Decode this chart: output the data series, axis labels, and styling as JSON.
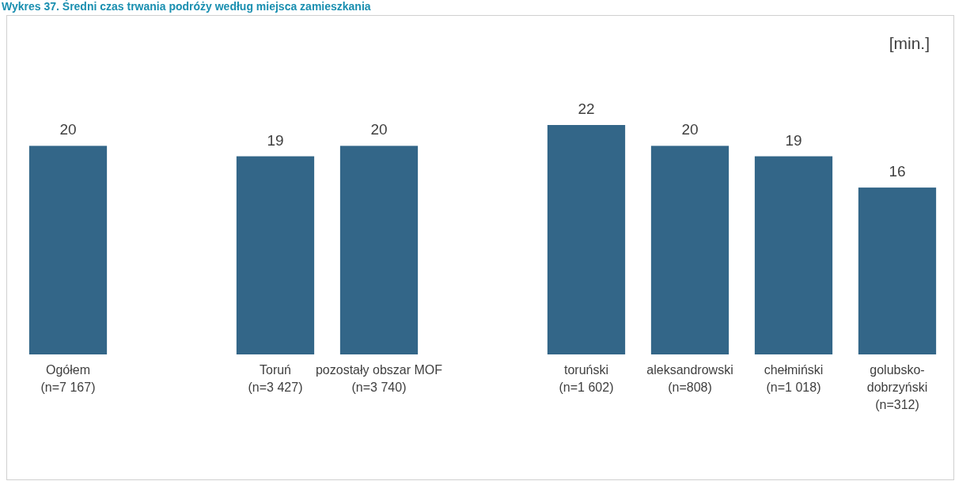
{
  "chart_data": {
    "type": "bar",
    "title": "Wykres 37. Średni czas trwania podróży według miejsca zamieszkania",
    "ylabel": "[min.]",
    "categories": [
      "Ogółem\n(n=7 167)",
      null,
      "Toruń\n(n=3 427)",
      "pozostały obszar MOF\n(n=3 740)",
      null,
      "toruński\n(n=1 602)",
      "aleksandrowski\n(n=808)",
      "chełmiński\n(n=1 018)",
      "golubsko-\ndobrzyński\n(n=312)"
    ],
    "values": [
      20,
      null,
      19,
      20,
      null,
      22,
      20,
      19,
      16
    ],
    "color": "#336688",
    "data_labels": true
  }
}
